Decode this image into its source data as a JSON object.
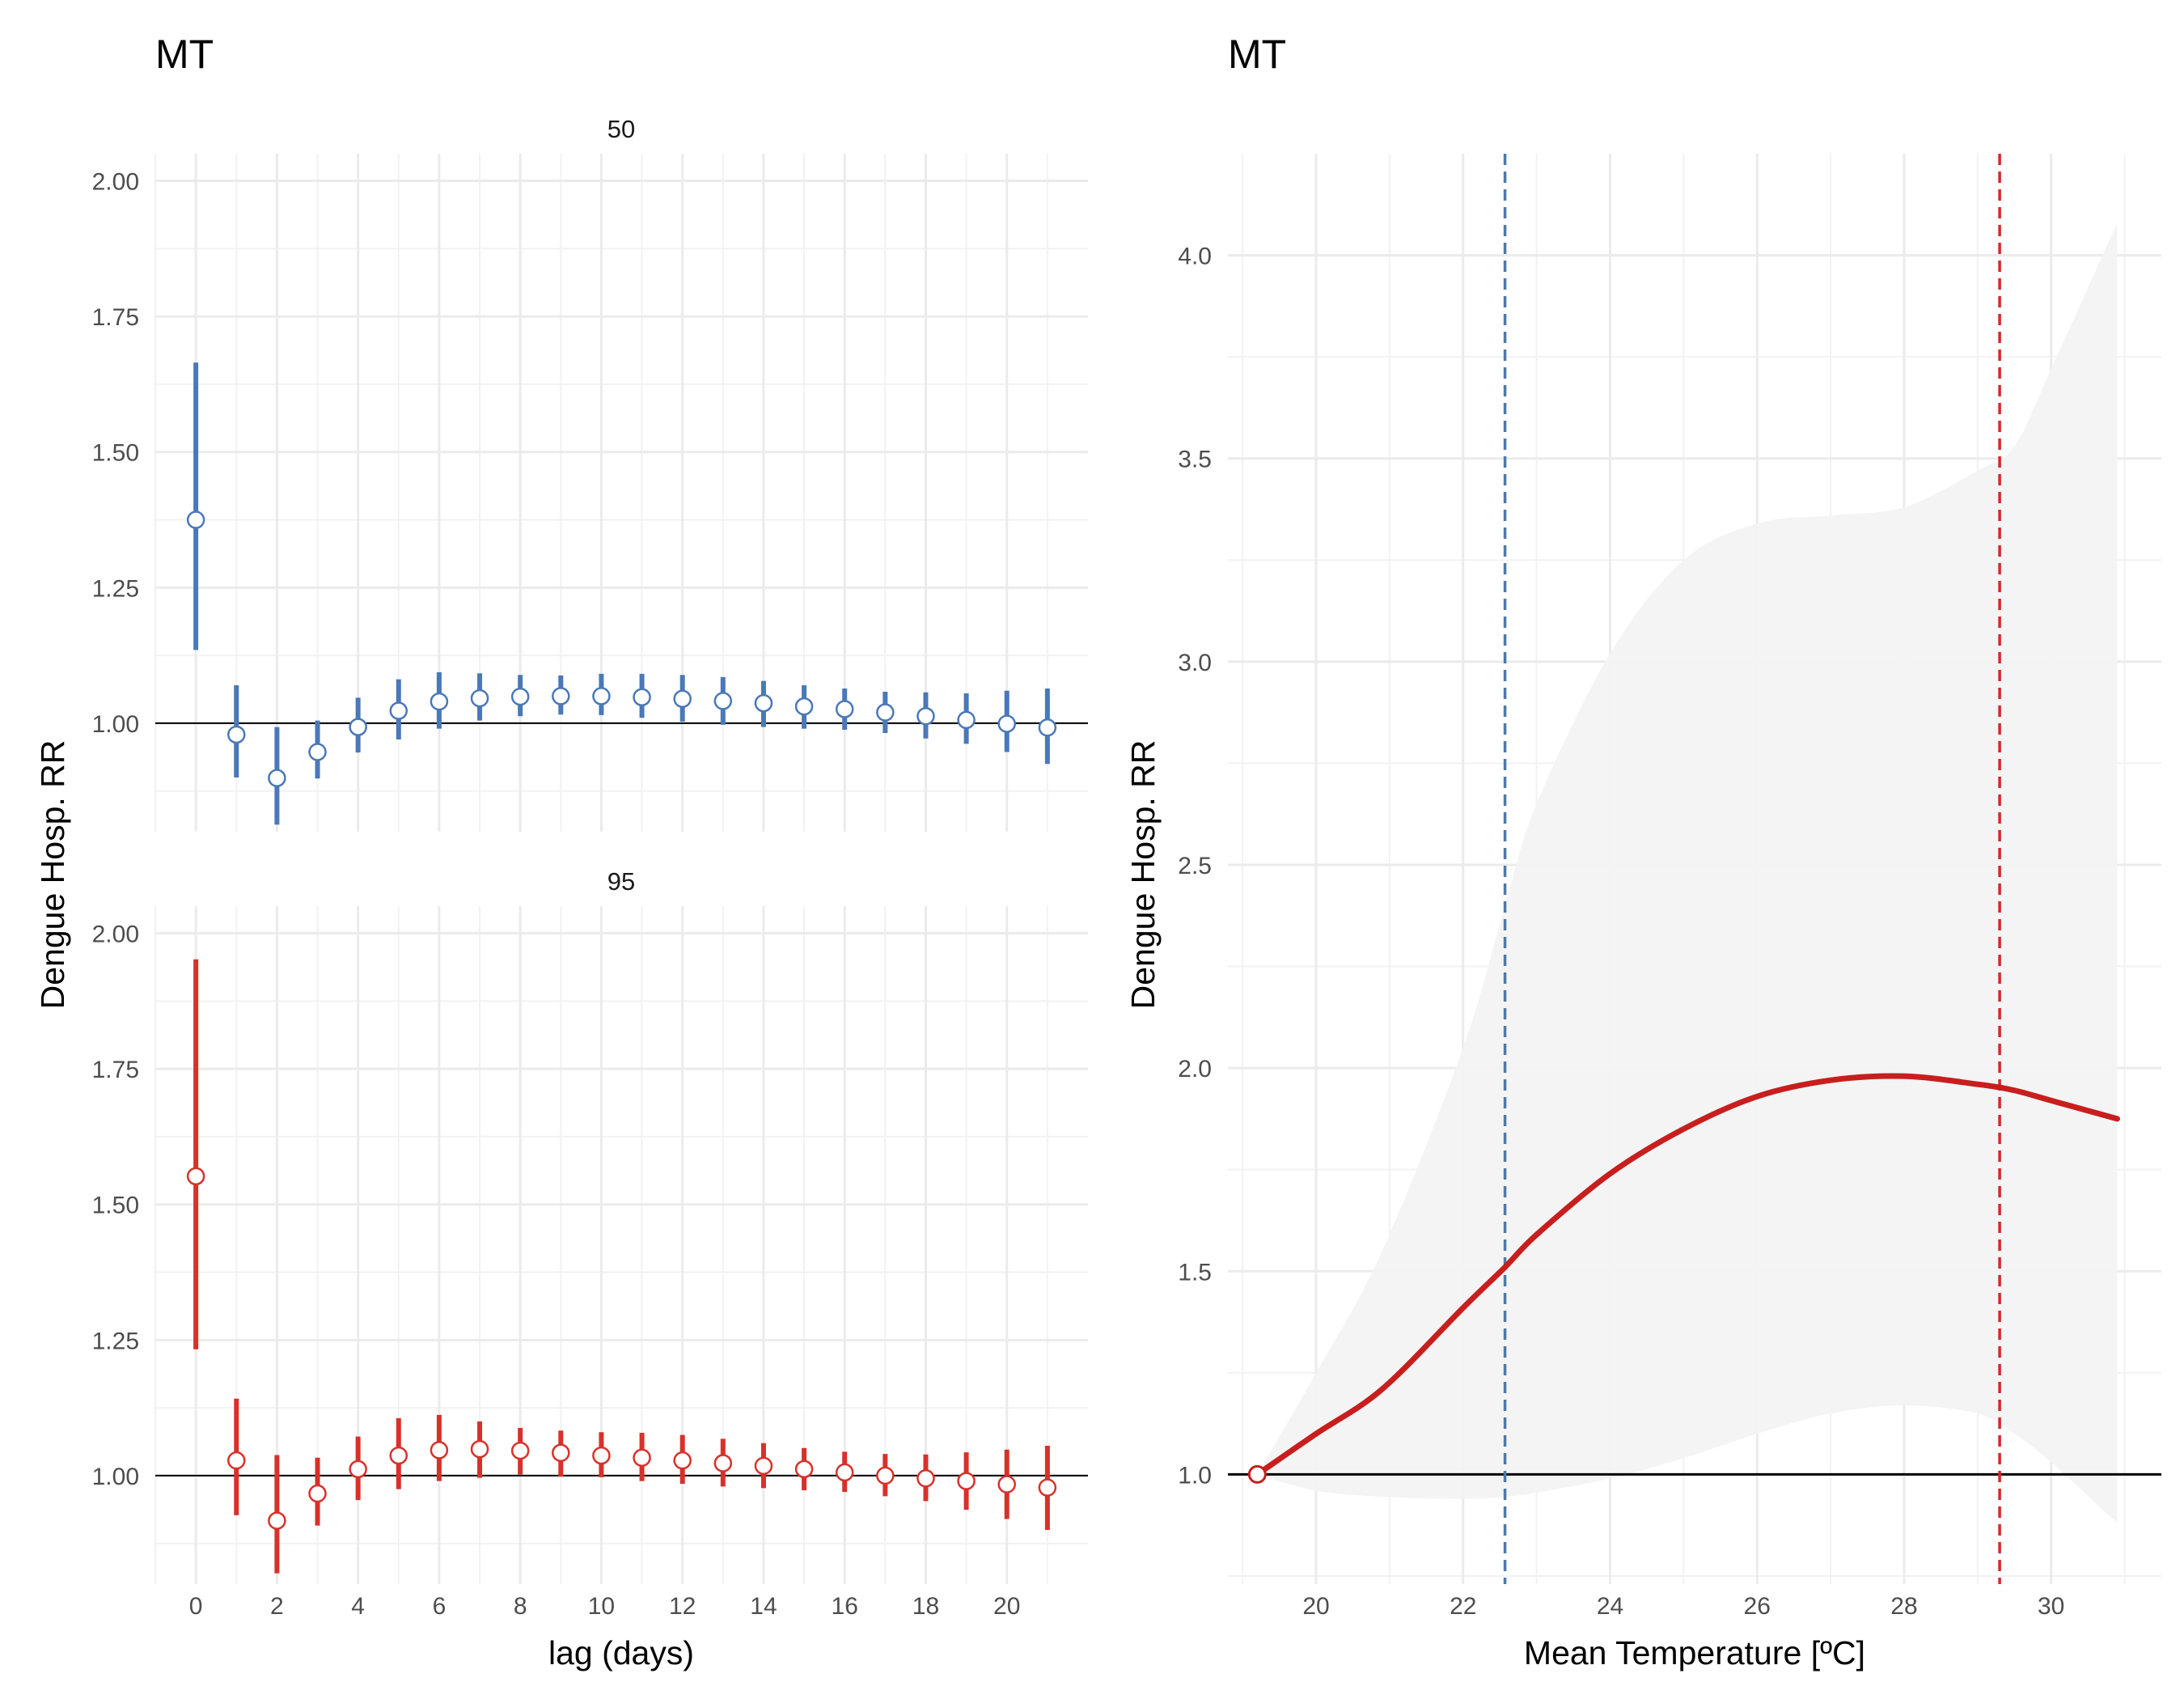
{
  "chart_data": [
    {
      "type": "scatter",
      "title": "MT",
      "xlabel": "lag (days)",
      "ylabel": "Dengue Hosp. RR",
      "xlim": [
        -1,
        22
      ],
      "ylim": [
        0.8,
        2.05
      ],
      "xticks": [
        "0",
        "2",
        "4",
        "6",
        "8",
        "10",
        "12",
        "14",
        "16",
        "18",
        "20"
      ],
      "yticks": [
        "1.00",
        "1.25",
        "1.50",
        "1.75",
        "2.00"
      ],
      "reference_line": 1.0,
      "grid": true,
      "panels": [
        {
          "strip_label": "50",
          "color": "#4a78b8",
          "lags": [
            0,
            1,
            2,
            3,
            4,
            5,
            6,
            7,
            8,
            9,
            10,
            11,
            12,
            13,
            14,
            15,
            16,
            17,
            18,
            19,
            20,
            21
          ],
          "rr": [
            1.375,
            0.979,
            0.899,
            0.947,
            0.993,
            1.023,
            1.04,
            1.046,
            1.049,
            1.05,
            1.05,
            1.048,
            1.045,
            1.041,
            1.037,
            1.031,
            1.026,
            1.02,
            1.013,
            1.006,
            0.999,
            0.992
          ],
          "lower": [
            1.135,
            0.9,
            0.813,
            0.898,
            0.946,
            0.97,
            0.99,
            1.005,
            1.013,
            1.016,
            1.015,
            1.01,
            1.003,
            0.997,
            0.993,
            0.99,
            0.988,
            0.982,
            0.972,
            0.962,
            0.947,
            0.925
          ],
          "upper": [
            1.665,
            1.07,
            0.993,
            1.005,
            1.047,
            1.081,
            1.094,
            1.092,
            1.089,
            1.088,
            1.091,
            1.091,
            1.089,
            1.085,
            1.078,
            1.07,
            1.064,
            1.058,
            1.057,
            1.055,
            1.06,
            1.064
          ]
        },
        {
          "strip_label": "95",
          "color": "#d7312a",
          "lags": [
            0,
            1,
            2,
            3,
            4,
            5,
            6,
            7,
            8,
            9,
            10,
            11,
            12,
            13,
            14,
            15,
            16,
            17,
            18,
            19,
            20,
            21
          ],
          "rr": [
            1.552,
            1.028,
            0.917,
            0.967,
            1.012,
            1.037,
            1.047,
            1.049,
            1.046,
            1.042,
            1.037,
            1.033,
            1.028,
            1.023,
            1.018,
            1.012,
            1.006,
            1.0,
            0.995,
            0.99,
            0.984,
            0.978
          ],
          "lower": [
            1.233,
            0.927,
            0.82,
            0.908,
            0.955,
            0.975,
            0.99,
            0.996,
            1.002,
            0.998,
            0.997,
            0.99,
            0.985,
            0.98,
            0.977,
            0.973,
            0.97,
            0.962,
            0.953,
            0.937,
            0.92,
            0.9
          ],
          "upper": [
            1.952,
            1.142,
            1.038,
            1.033,
            1.072,
            1.106,
            1.112,
            1.1,
            1.088,
            1.083,
            1.08,
            1.079,
            1.075,
            1.068,
            1.06,
            1.051,
            1.044,
            1.04,
            1.039,
            1.043,
            1.048,
            1.055
          ]
        }
      ]
    },
    {
      "type": "line",
      "title": "MT",
      "xlabel": "Mean Temperature [ºC]",
      "ylabel": "Dengue Hosp. RR",
      "xlim": [
        18.8,
        31.5
      ],
      "ylim": [
        0.73,
        4.25
      ],
      "xticks": [
        "20",
        "22",
        "24",
        "26",
        "28",
        "30"
      ],
      "yticks": [
        "1.0",
        "1.5",
        "2.0",
        "2.5",
        "3.0",
        "3.5",
        "4.0"
      ],
      "reference_line": 1.0,
      "grid": true,
      "line_color": "#c81e1e",
      "ribbon_color": "#f3f3f3",
      "reference_point": {
        "x": 19.2,
        "y": 1.0
      },
      "vlines": [
        {
          "x": 22.57,
          "color": "#4e79a7",
          "style": "dashed"
        },
        {
          "x": 29.3,
          "color": "#d62728",
          "style": "dashed"
        }
      ],
      "x": [
        19.2,
        20.0,
        20.9,
        22.0,
        22.57,
        23.0,
        24.0,
        25.0,
        26.0,
        27.0,
        28.0,
        29.0,
        29.5,
        30.0,
        30.9
      ],
      "y": [
        1.0,
        1.1,
        1.21,
        1.41,
        1.51,
        1.59,
        1.74,
        1.85,
        1.93,
        1.97,
        1.98,
        1.96,
        1.945,
        1.92,
        1.875
      ],
      "lower": [
        1.0,
        0.96,
        0.945,
        0.94,
        0.945,
        0.955,
        0.99,
        1.04,
        1.1,
        1.15,
        1.17,
        1.15,
        1.1,
        1.03,
        0.88
      ],
      "upper": [
        1.0,
        1.25,
        1.55,
        2.05,
        2.4,
        2.65,
        3.02,
        3.25,
        3.34,
        3.36,
        3.38,
        3.47,
        3.53,
        3.72,
        4.08
      ]
    }
  ]
}
